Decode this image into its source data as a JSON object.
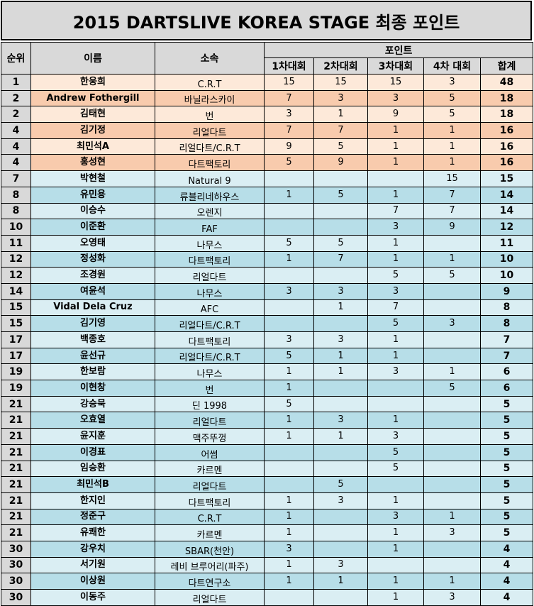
{
  "title": "2015 DARTSLIVE KOREA STAGE 최종 포인트",
  "headers": {
    "rank": "순위",
    "name": "이름",
    "club": "소속",
    "points": "포인트",
    "r1": "1차대회",
    "r2": "2차대회",
    "r3": "3차대회",
    "r4": "4차 대회",
    "total": "합계"
  },
  "rows": [
    {
      "rank": "1",
      "name": "한웅희",
      "club": "C.R.T",
      "r1": "15",
      "r2": "15",
      "r3": "15",
      "r4": "3",
      "total": "48",
      "style": "t-light1"
    },
    {
      "rank": "2",
      "name": "Andrew Fothergill",
      "club": "바닐라스카이",
      "r1": "7",
      "r2": "3",
      "r3": "3",
      "r4": "5",
      "total": "18",
      "style": "t-mid"
    },
    {
      "rank": "2",
      "name": "김태현",
      "club": "번",
      "r1": "3",
      "r2": "1",
      "r3": "9",
      "r4": "5",
      "total": "18",
      "style": "t-light1"
    },
    {
      "rank": "4",
      "name": "김기정",
      "club": "리얼다트",
      "r1": "7",
      "r2": "7",
      "r3": "1",
      "r4": "1",
      "total": "16",
      "style": "t-mid"
    },
    {
      "rank": "4",
      "name": "최민석A",
      "club": "리얼다트/C.R.T",
      "r1": "9",
      "r2": "5",
      "r3": "1",
      "r4": "1",
      "total": "16",
      "style": "t-light1"
    },
    {
      "rank": "4",
      "name": "홍성현",
      "club": "다트팩토리",
      "r1": "5",
      "r2": "9",
      "r3": "1",
      "r4": "1",
      "total": "16",
      "style": "t-mid"
    },
    {
      "rank": "7",
      "name": "박현철",
      "club": "Natural 9",
      "r1": "",
      "r2": "",
      "r3": "",
      "r4": "15",
      "total": "15",
      "style": "b-light"
    },
    {
      "rank": "8",
      "name": "유민용",
      "club": "류블리네하우스",
      "r1": "1",
      "r2": "5",
      "r3": "1",
      "r4": "7",
      "total": "14",
      "style": "b-mid"
    },
    {
      "rank": "8",
      "name": "이승수",
      "club": "오렌지",
      "r1": "",
      "r2": "",
      "r3": "7",
      "r4": "7",
      "total": "14",
      "style": "b-light"
    },
    {
      "rank": "10",
      "name": "이준환",
      "club": "FAF",
      "r1": "",
      "r2": "",
      "r3": "3",
      "r4": "9",
      "total": "12",
      "style": "b-mid"
    },
    {
      "rank": "11",
      "name": "오영태",
      "club": "나무스",
      "r1": "5",
      "r2": "5",
      "r3": "1",
      "r4": "",
      "total": "11",
      "style": "b-light"
    },
    {
      "rank": "12",
      "name": "정성화",
      "club": "다트팩토리",
      "r1": "1",
      "r2": "7",
      "r3": "1",
      "r4": "1",
      "total": "10",
      "style": "b-mid"
    },
    {
      "rank": "12",
      "name": "조경원",
      "club": "리얼다트",
      "r1": "",
      "r2": "",
      "r3": "5",
      "r4": "5",
      "total": "10",
      "style": "b-light"
    },
    {
      "rank": "14",
      "name": "여윤석",
      "club": "나무스",
      "r1": "3",
      "r2": "3",
      "r3": "3",
      "r4": "",
      "total": "9",
      "style": "b-mid"
    },
    {
      "rank": "15",
      "name": "Vidal Dela Cruz",
      "club": "AFC",
      "r1": "",
      "r2": "1",
      "r3": "7",
      "r4": "",
      "total": "8",
      "style": "b-light"
    },
    {
      "rank": "15",
      "name": "김기영",
      "club": "리얼다트/C.R.T",
      "r1": "",
      "r2": "",
      "r3": "5",
      "r4": "3",
      "total": "8",
      "style": "b-mid"
    },
    {
      "rank": "17",
      "name": "백종호",
      "club": "다트팩토리",
      "r1": "3",
      "r2": "3",
      "r3": "1",
      "r4": "",
      "total": "7",
      "style": "b-light"
    },
    {
      "rank": "17",
      "name": "윤선규",
      "club": "리얼다트/C.R.T",
      "r1": "5",
      "r2": "1",
      "r3": "1",
      "r4": "",
      "total": "7",
      "style": "b-mid"
    },
    {
      "rank": "19",
      "name": "한보람",
      "club": "나무스",
      "r1": "1",
      "r2": "1",
      "r3": "3",
      "r4": "1",
      "total": "6",
      "style": "b-light"
    },
    {
      "rank": "19",
      "name": "이현창",
      "club": "번",
      "r1": "1",
      "r2": "",
      "r3": "",
      "r4": "5",
      "total": "6",
      "style": "b-mid"
    },
    {
      "rank": "21",
      "name": "강승묵",
      "club": "딘 1998",
      "r1": "5",
      "r2": "",
      "r3": "",
      "r4": "",
      "total": "5",
      "style": "b-light"
    },
    {
      "rank": "21",
      "name": "오효열",
      "club": "리얼다트",
      "r1": "1",
      "r2": "3",
      "r3": "1",
      "r4": "",
      "total": "5",
      "style": "b-mid"
    },
    {
      "rank": "21",
      "name": "윤지훈",
      "club": "맥주뚜껑",
      "r1": "1",
      "r2": "1",
      "r3": "3",
      "r4": "",
      "total": "5",
      "style": "b-light"
    },
    {
      "rank": "21",
      "name": "이경표",
      "club": "어썸",
      "r1": "",
      "r2": "",
      "r3": "5",
      "r4": "",
      "total": "5",
      "style": "b-mid"
    },
    {
      "rank": "21",
      "name": "임승환",
      "club": "카르멘",
      "r1": "",
      "r2": "",
      "r3": "5",
      "r4": "",
      "total": "5",
      "style": "b-light"
    },
    {
      "rank": "21",
      "name": "최민석B",
      "club": "리얼다트",
      "r1": "",
      "r2": "5",
      "r3": "",
      "r4": "",
      "total": "5",
      "style": "b-mid"
    },
    {
      "rank": "21",
      "name": "한지인",
      "club": "다트팩토리",
      "r1": "1",
      "r2": "3",
      "r3": "1",
      "r4": "",
      "total": "5",
      "style": "b-light"
    },
    {
      "rank": "21",
      "name": "정준구",
      "club": "C.R.T",
      "r1": "1",
      "r2": "",
      "r3": "3",
      "r4": "1",
      "total": "5",
      "style": "b-mid"
    },
    {
      "rank": "21",
      "name": "유쾌한",
      "club": "카르멘",
      "r1": "1",
      "r2": "",
      "r3": "1",
      "r4": "3",
      "total": "5",
      "style": "b-light"
    },
    {
      "rank": "30",
      "name": "강우치",
      "club": "SBAR(천안)",
      "r1": "3",
      "r2": "",
      "r3": "1",
      "r4": "",
      "total": "4",
      "style": "b-mid"
    },
    {
      "rank": "30",
      "name": "서기원",
      "club": "레비 브루어리(파주)",
      "r1": "1",
      "r2": "3",
      "r3": "",
      "r4": "",
      "total": "4",
      "style": "b-light"
    },
    {
      "rank": "30",
      "name": "이상원",
      "club": "다트연구소",
      "r1": "1",
      "r2": "1",
      "r3": "1",
      "r4": "1",
      "total": "4",
      "style": "b-mid"
    },
    {
      "rank": "30",
      "name": "이동주",
      "club": "리얼다트",
      "r1": "",
      "r2": "",
      "r3": "1",
      "r4": "3",
      "total": "4",
      "style": "b-light"
    }
  ]
}
